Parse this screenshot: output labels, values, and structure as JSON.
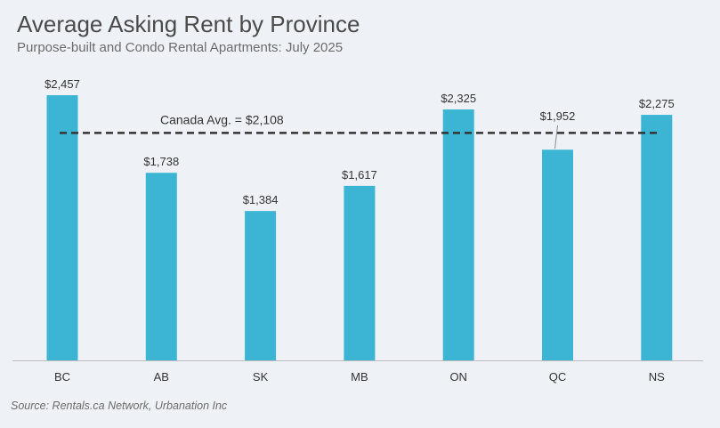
{
  "header": {
    "title": "Average Asking Rent by Province",
    "subtitle": "Purpose-built and Condo Rental Apartments: July 2025"
  },
  "footer": {
    "source": "Source: Rentals.ca Network, Urbanation Inc"
  },
  "colors": {
    "bar": "#3bb5d3",
    "background": "#eef2f7",
    "average_line": "#333333",
    "text": "#333333"
  },
  "chart_data": {
    "type": "bar",
    "title": "Average Asking Rent by Province",
    "subtitle": "Purpose-built and Condo Rental Apartments: July 2025",
    "categories": [
      "BC",
      "AB",
      "SK",
      "MB",
      "ON",
      "QC",
      "NS"
    ],
    "values": [
      2457,
      1738,
      1384,
      1617,
      2325,
      1952,
      2275
    ],
    "value_labels": [
      "$2,457",
      "$1,738",
      "$1,384",
      "$1,617",
      "$2,325",
      "$1,952",
      "$2,275"
    ],
    "reference_line": {
      "label": "Canada Avg. = $2,108",
      "value": 2108,
      "style": "dashed"
    },
    "xlabel": "",
    "ylabel": "",
    "ylim": [
      0,
      2457
    ],
    "grid": false,
    "legend": "none"
  }
}
